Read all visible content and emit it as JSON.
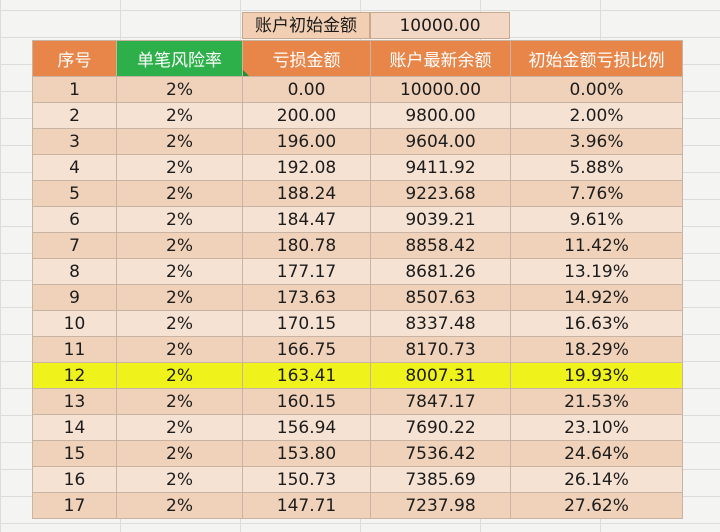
{
  "top": {
    "label": "账户初始金额",
    "value": "10000.00"
  },
  "headers": [
    "序号",
    "单笔风险率",
    "亏损金额",
    "账户最新余额",
    "初始金额亏损比例"
  ],
  "rows": [
    [
      "1",
      "2%",
      "0.00",
      "10000.00",
      "0.00%"
    ],
    [
      "2",
      "2%",
      "200.00",
      "9800.00",
      "2.00%"
    ],
    [
      "3",
      "2%",
      "196.00",
      "9604.00",
      "3.96%"
    ],
    [
      "4",
      "2%",
      "192.08",
      "9411.92",
      "5.88%"
    ],
    [
      "5",
      "2%",
      "188.24",
      "9223.68",
      "7.76%"
    ],
    [
      "6",
      "2%",
      "184.47",
      "9039.21",
      "9.61%"
    ],
    [
      "7",
      "2%",
      "180.78",
      "8858.42",
      "11.42%"
    ],
    [
      "8",
      "2%",
      "177.17",
      "8681.26",
      "13.19%"
    ],
    [
      "9",
      "2%",
      "173.63",
      "8507.63",
      "14.92%"
    ],
    [
      "10",
      "2%",
      "170.15",
      "8337.48",
      "16.63%"
    ],
    [
      "11",
      "2%",
      "166.75",
      "8170.73",
      "18.29%"
    ],
    [
      "12",
      "2%",
      "163.41",
      "8007.31",
      "19.93%"
    ],
    [
      "13",
      "2%",
      "160.15",
      "7847.17",
      "21.53%"
    ],
    [
      "14",
      "2%",
      "156.94",
      "7690.22",
      "23.10%"
    ],
    [
      "15",
      "2%",
      "153.80",
      "7536.42",
      "24.64%"
    ],
    [
      "16",
      "2%",
      "150.73",
      "7385.69",
      "26.14%"
    ],
    [
      "17",
      "2%",
      "147.71",
      "7237.98",
      "27.62%"
    ]
  ],
  "highlight_row": 12,
  "colors": {
    "header": "#e8864a",
    "header_selected": "#2db04a",
    "row_odd": "#f0d2ba",
    "row_even": "#f6e2d3",
    "highlight": "#f0f21c"
  }
}
